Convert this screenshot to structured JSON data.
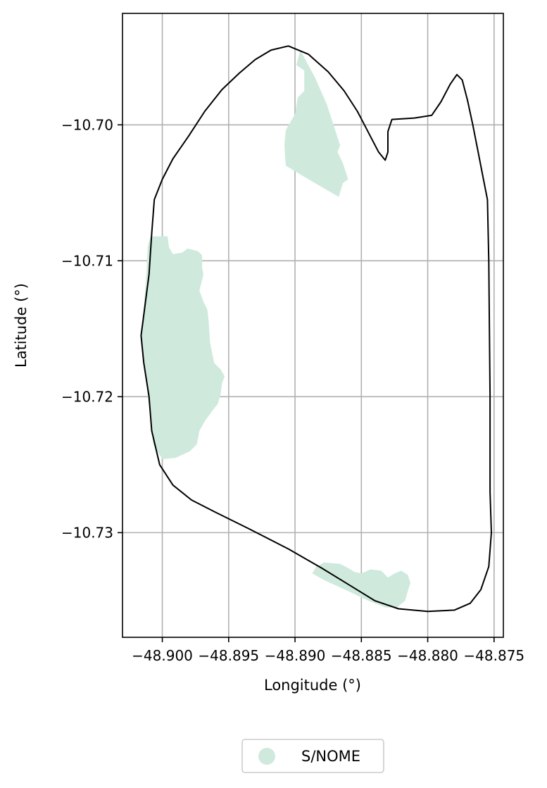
{
  "chart_data": {
    "type": "map",
    "xlabel": "Longitude (°)",
    "ylabel": "Latitude (°)",
    "xlim": [
      -48.903,
      -48.8743
    ],
    "ylim": [
      -10.7377,
      -10.6918
    ],
    "grid": true,
    "x_ticks": [
      -48.9,
      -48.895,
      -48.89,
      -48.885,
      -48.88,
      -48.875
    ],
    "y_ticks": [
      -10.7,
      -10.71,
      -10.72,
      -10.73
    ],
    "x_tick_labels": [
      "−48.900",
      "−48.895",
      "−48.890",
      "−48.885",
      "−48.880",
      "−48.875"
    ],
    "y_tick_labels": [
      "−10.70",
      "−10.71",
      "−10.72",
      "−10.73"
    ],
    "boundary": {
      "color": "#000000",
      "points": [
        [
          -48.8905,
          -10.6942
        ],
        [
          -48.8918,
          -10.6945
        ],
        [
          -48.893,
          -10.6952
        ],
        [
          -48.8942,
          -10.6962
        ],
        [
          -48.8955,
          -10.6974
        ],
        [
          -48.8968,
          -10.699
        ],
        [
          -48.898,
          -10.7008
        ],
        [
          -48.8992,
          -10.7025
        ],
        [
          -48.9,
          -10.704
        ],
        [
          -48.9006,
          -10.7055
        ],
        [
          -48.9008,
          -10.708
        ],
        [
          -48.901,
          -10.711
        ],
        [
          -48.9014,
          -10.714
        ],
        [
          -48.9016,
          -10.7155
        ],
        [
          -48.9014,
          -10.7175
        ],
        [
          -48.901,
          -10.72
        ],
        [
          -48.9008,
          -10.7225
        ],
        [
          -48.9002,
          -10.725
        ],
        [
          -48.8992,
          -10.7265
        ],
        [
          -48.8978,
          -10.7276
        ],
        [
          -48.896,
          -10.7285
        ],
        [
          -48.8935,
          -10.7297
        ],
        [
          -48.8905,
          -10.7312
        ],
        [
          -48.888,
          -10.7326
        ],
        [
          -48.886,
          -10.7338
        ],
        [
          -48.884,
          -10.735
        ],
        [
          -48.8822,
          -10.7356
        ],
        [
          -48.88,
          -10.7358
        ],
        [
          -48.878,
          -10.7357
        ],
        [
          -48.8768,
          -10.7352
        ],
        [
          -48.876,
          -10.7342
        ],
        [
          -48.8754,
          -10.7325
        ],
        [
          -48.8752,
          -10.73
        ],
        [
          -48.8753,
          -10.727
        ],
        [
          -48.8753,
          -10.72
        ],
        [
          -48.8754,
          -10.71
        ],
        [
          -48.8755,
          -10.7055
        ],
        [
          -48.8758,
          -10.704
        ],
        [
          -48.8762,
          -10.702
        ],
        [
          -48.8766,
          -10.7
        ],
        [
          -48.877,
          -10.6982
        ],
        [
          -48.8774,
          -10.6967
        ],
        [
          -48.8778,
          -10.6963
        ],
        [
          -48.8783,
          -10.697
        ],
        [
          -48.879,
          -10.6983
        ],
        [
          -48.8797,
          -10.6993
        ],
        [
          -48.881,
          -10.6995
        ],
        [
          -48.8827,
          -10.6996
        ],
        [
          -48.883,
          -10.7005
        ],
        [
          -48.883,
          -10.702
        ],
        [
          -48.8832,
          -10.7026
        ],
        [
          -48.8837,
          -10.702
        ],
        [
          -48.8845,
          -10.7005
        ],
        [
          -48.8853,
          -10.699
        ],
        [
          -48.8863,
          -10.6975
        ],
        [
          -48.8875,
          -10.6961
        ],
        [
          -48.889,
          -10.6948
        ],
        [
          -48.8905,
          -10.6942
        ]
      ]
    },
    "series": [
      {
        "name": "S/NOME",
        "color": "#cfeadd",
        "polygons": [
          [
            [
              -48.8896,
              -10.6945
            ],
            [
              -48.8885,
              -10.6965
            ],
            [
              -48.8876,
              -10.6985
            ],
            [
              -48.8871,
              -10.7
            ],
            [
              -48.8866,
              -10.7015
            ],
            [
              -48.8868,
              -10.702
            ],
            [
              -48.8864,
              -10.7028
            ],
            [
              -48.886,
              -10.704
            ],
            [
              -48.8864,
              -10.7043
            ],
            [
              -48.8867,
              -10.7053
            ],
            [
              -48.889,
              -10.704
            ],
            [
              -48.8907,
              -10.703
            ],
            [
              -48.8908,
              -10.7015
            ],
            [
              -48.8907,
              -10.7004
            ],
            [
              -48.89,
              -10.6992
            ],
            [
              -48.8898,
              -10.698
            ],
            [
              -48.8893,
              -10.6975
            ],
            [
              -48.8893,
              -10.696
            ],
            [
              -48.8899,
              -10.6956
            ]
          ],
          [
            [
              -48.9009,
              -10.7082
            ],
            [
              -48.8996,
              -10.7082
            ],
            [
              -48.8995,
              -10.709
            ],
            [
              -48.8992,
              -10.7095
            ],
            [
              -48.8985,
              -10.7094
            ],
            [
              -48.8981,
              -10.7091
            ],
            [
              -48.8973,
              -10.7093
            ],
            [
              -48.897,
              -10.7096
            ],
            [
              -48.897,
              -10.7105
            ],
            [
              -48.8969,
              -10.711
            ],
            [
              -48.8972,
              -10.7122
            ],
            [
              -48.8969,
              -10.713
            ],
            [
              -48.8966,
              -10.7136
            ],
            [
              -48.8965,
              -10.7145
            ],
            [
              -48.8964,
              -10.716
            ],
            [
              -48.8961,
              -10.7175
            ],
            [
              -48.8956,
              -10.718
            ],
            [
              -48.8953,
              -10.7185
            ],
            [
              -48.8955,
              -10.719
            ],
            [
              -48.8956,
              -10.7198
            ],
            [
              -48.8958,
              -10.7205
            ],
            [
              -48.8962,
              -10.721
            ],
            [
              -48.8968,
              -10.7218
            ],
            [
              -48.8972,
              -10.7225
            ],
            [
              -48.8974,
              -10.7235
            ],
            [
              -48.8979,
              -10.724
            ],
            [
              -48.899,
              -10.7245
            ],
            [
              -48.9,
              -10.7246
            ],
            [
              -48.9007,
              -10.7235
            ],
            [
              -48.9008,
              -10.722
            ],
            [
              -48.9011,
              -10.72
            ],
            [
              -48.9013,
              -10.718
            ],
            [
              -48.9016,
              -10.7155
            ],
            [
              -48.9014,
              -10.7135
            ],
            [
              -48.9012,
              -10.711
            ],
            [
              -48.9011,
              -10.709
            ]
          ],
          [
            [
              -48.8866,
              -10.7323
            ],
            [
              -48.8878,
              -10.7322
            ],
            [
              -48.8884,
              -10.7325
            ],
            [
              -48.8887,
              -10.733
            ],
            [
              -48.8878,
              -10.7335
            ],
            [
              -48.886,
              -10.7343
            ],
            [
              -48.8845,
              -10.735
            ],
            [
              -48.8832,
              -10.7355
            ],
            [
              -48.8823,
              -10.7355
            ],
            [
              -48.8817,
              -10.735
            ],
            [
              -48.8815,
              -10.7343
            ],
            [
              -48.8813,
              -10.7337
            ],
            [
              -48.8815,
              -10.7331
            ],
            [
              -48.882,
              -10.7328
            ],
            [
              -48.8825,
              -10.733
            ],
            [
              -48.883,
              -10.7333
            ],
            [
              -48.8835,
              -10.7328
            ],
            [
              -48.8843,
              -10.7327
            ],
            [
              -48.885,
              -10.733
            ],
            [
              -48.8855,
              -10.7329
            ],
            [
              -48.886,
              -10.7326
            ]
          ]
        ]
      }
    ]
  }
}
